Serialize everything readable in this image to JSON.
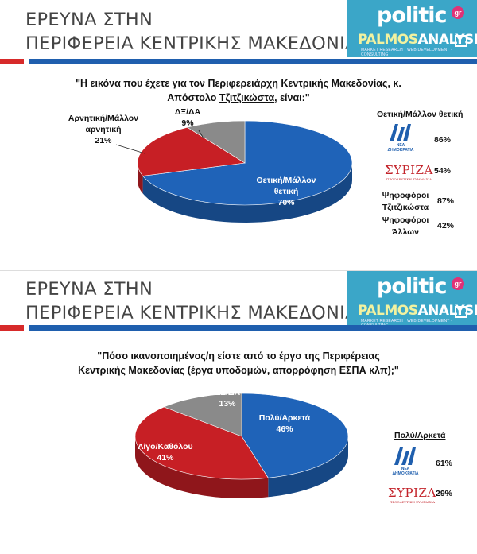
{
  "header": {
    "title_line1": "ΕΡΕΥΝΑ ΣΤΗΝ",
    "title_line2": "ΠΕΡΙΦΕΡΕΙΑ ΚΕΝΤΡΙΚΗΣ ΜΑΚΕΔΟΝΙΑΣ",
    "logo_politic": "politic",
    "logo_gr": "gr",
    "logo_palmos": "PALMOS",
    "logo_analysis": "ANALYSIS",
    "logo_sub": "MARKET RESEARCH · WEB DEVELOPMENT · CONSULTING"
  },
  "chart_data": [
    {
      "type": "pie",
      "title_line1": "\"Η εικόνα που έχετε για τον Περιφερειάρχη Κεντρικής Μακεδονίας, κ.",
      "title_line2_pre": "Απόστολο ",
      "title_line2_u": "Τζιτζικώστα",
      "title_line2_post": ", είναι:\"",
      "slices": [
        {
          "label_line1": "Θετική/Μάλλον",
          "label_line2": "θετική",
          "value": 70,
          "value_label": "70%",
          "color": "#1f63b8"
        },
        {
          "label_line1": "Αρνητική/Μάλλον",
          "label_line2": "αρνητική",
          "value": 21,
          "value_label": "21%",
          "color": "#c71f25"
        },
        {
          "label_line1": "ΔΞ/ΔΑ",
          "label_line2": "",
          "value": 9,
          "value_label": "9%",
          "color": "#8a8a8a"
        }
      ],
      "side": {
        "title": "Θετική/Μάλλον θετική",
        "nd_name": "ΝΕΑ ΔΗΜΟΚΡΑΤΙΑ",
        "nd_value": "86%",
        "syriza_name": "ΣΥΡΙΖΑ",
        "syriza_sub": "ΠΡΟΟΔΕΥΤΙΚΗ ΣΥΜΜΑΧΙΑ",
        "syriza_value": "54%",
        "voters_a_line1": "Ψηφοφόροι",
        "voters_a_line2": "Τζιτζικώστα",
        "voters_a_value": "87%",
        "voters_b_line1": "Ψηφοφόροι",
        "voters_b_line2": "Άλλων",
        "voters_b_value": "42%"
      }
    },
    {
      "type": "pie",
      "title_line1": "\"Πόσο ικανοποιημένος/η είστε από το έργο της Περιφέρειας",
      "title_line2_pre": "Κεντρικής Μακεδονίας (έργα υποδομών, απορρόφηση ΕΣΠΑ κλπ);\"",
      "title_line2_u": "",
      "title_line2_post": "",
      "slices": [
        {
          "label_line1": "Πολύ/Αρκετά",
          "label_line2": "",
          "value": 46,
          "value_label": "46%",
          "color": "#1f63b8"
        },
        {
          "label_line1": "Λίγο/Καθόλου",
          "label_line2": "",
          "value": 41,
          "value_label": "41%",
          "color": "#c71f25"
        },
        {
          "label_line1": "ΔΞ/ΔΑ",
          "label_line2": "",
          "value": 13,
          "value_label": "13%",
          "color": "#8a8a8a"
        }
      ],
      "side": {
        "title": "Πολύ/Αρκετά",
        "nd_name": "ΝΕΑ ΔΗΜΟΚΡΑΤΙΑ",
        "nd_value": "61%",
        "syriza_name": "ΣΥΡΙΖΑ",
        "syriza_sub": "ΠΡΟΟΔΕΥΤΙΚΗ ΣΥΜΜΑΧΙΑ",
        "syriza_value": "29%"
      }
    }
  ]
}
